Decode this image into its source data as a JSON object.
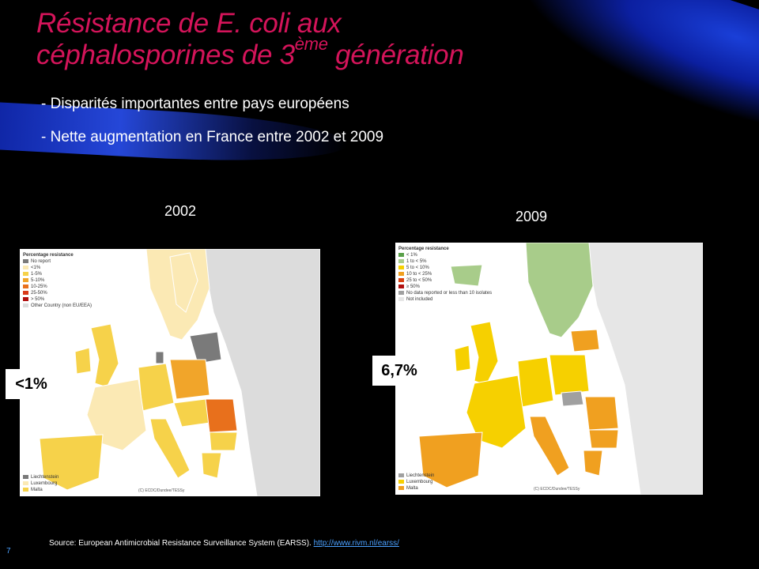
{
  "title": {
    "line1": "Résistance de E. coli  aux",
    "line2_pre": "céphalosporines  de 3",
    "line2_sup": "ème",
    "line2_post": " génération"
  },
  "bullets": [
    "- Disparités importantes entre pays européens",
    "- Nette augmentation en France entre 2002 et 2009"
  ],
  "maps": {
    "left": {
      "year": "2002",
      "badge": "<1%",
      "legend_title": "Percentage resistance",
      "legend": [
        {
          "label": "No report",
          "color": "#7a7a7a"
        },
        {
          "label": "<1%",
          "color": "#fbe9b4"
        },
        {
          "label": "1-5%",
          "color": "#f6d24a"
        },
        {
          "label": "5-10%",
          "color": "#f1a52a"
        },
        {
          "label": "10-25%",
          "color": "#e8701c"
        },
        {
          "label": "25-50%",
          "color": "#d93a1a"
        },
        {
          "label": "> 50%",
          "color": "#b01010"
        },
        {
          "label": "Other Country (non EU/EEA)",
          "color": "#dcdcdc"
        }
      ],
      "legend_bottom": [
        {
          "label": "Liechtenstein",
          "color": "#7a7a7a"
        },
        {
          "label": "Luxembourg",
          "color": "#fbe9b4"
        },
        {
          "label": "Malta",
          "color": "#f6d24a"
        }
      ],
      "copyright": "(C) ECDC/Dundee/TESSy"
    },
    "right": {
      "year": "2009",
      "badge": "6,7%",
      "legend_title": "Percentage resistance",
      "legend": [
        {
          "label": "< 1%",
          "color": "#5aa04a"
        },
        {
          "label": "1 to < 5%",
          "color": "#a8cc8a"
        },
        {
          "label": "5 to < 10%",
          "color": "#f6d000"
        },
        {
          "label": "10 to < 25%",
          "color": "#f0a020"
        },
        {
          "label": "25 to < 50%",
          "color": "#d94010"
        },
        {
          "label": "≥ 50%",
          "color": "#b01010"
        },
        {
          "label": "No data reported or less than 10 isolates",
          "color": "#a0a0a0"
        },
        {
          "label": "Not included",
          "color": "#e6e6e6"
        }
      ],
      "legend_bottom": [
        {
          "label": "Liechtenstein",
          "color": "#a0a0a0"
        },
        {
          "label": "Luxembourg",
          "color": "#f6d000"
        },
        {
          "label": "Malta",
          "color": "#f0a020"
        }
      ],
      "copyright": "(C) ECDC/Dundee/TESSy"
    }
  },
  "source": {
    "text": "Source: European Antimicrobial Resistance Surveillance System (EARSS). ",
    "link": "http://www.rivm.nl/earss/"
  },
  "page_number": "7"
}
